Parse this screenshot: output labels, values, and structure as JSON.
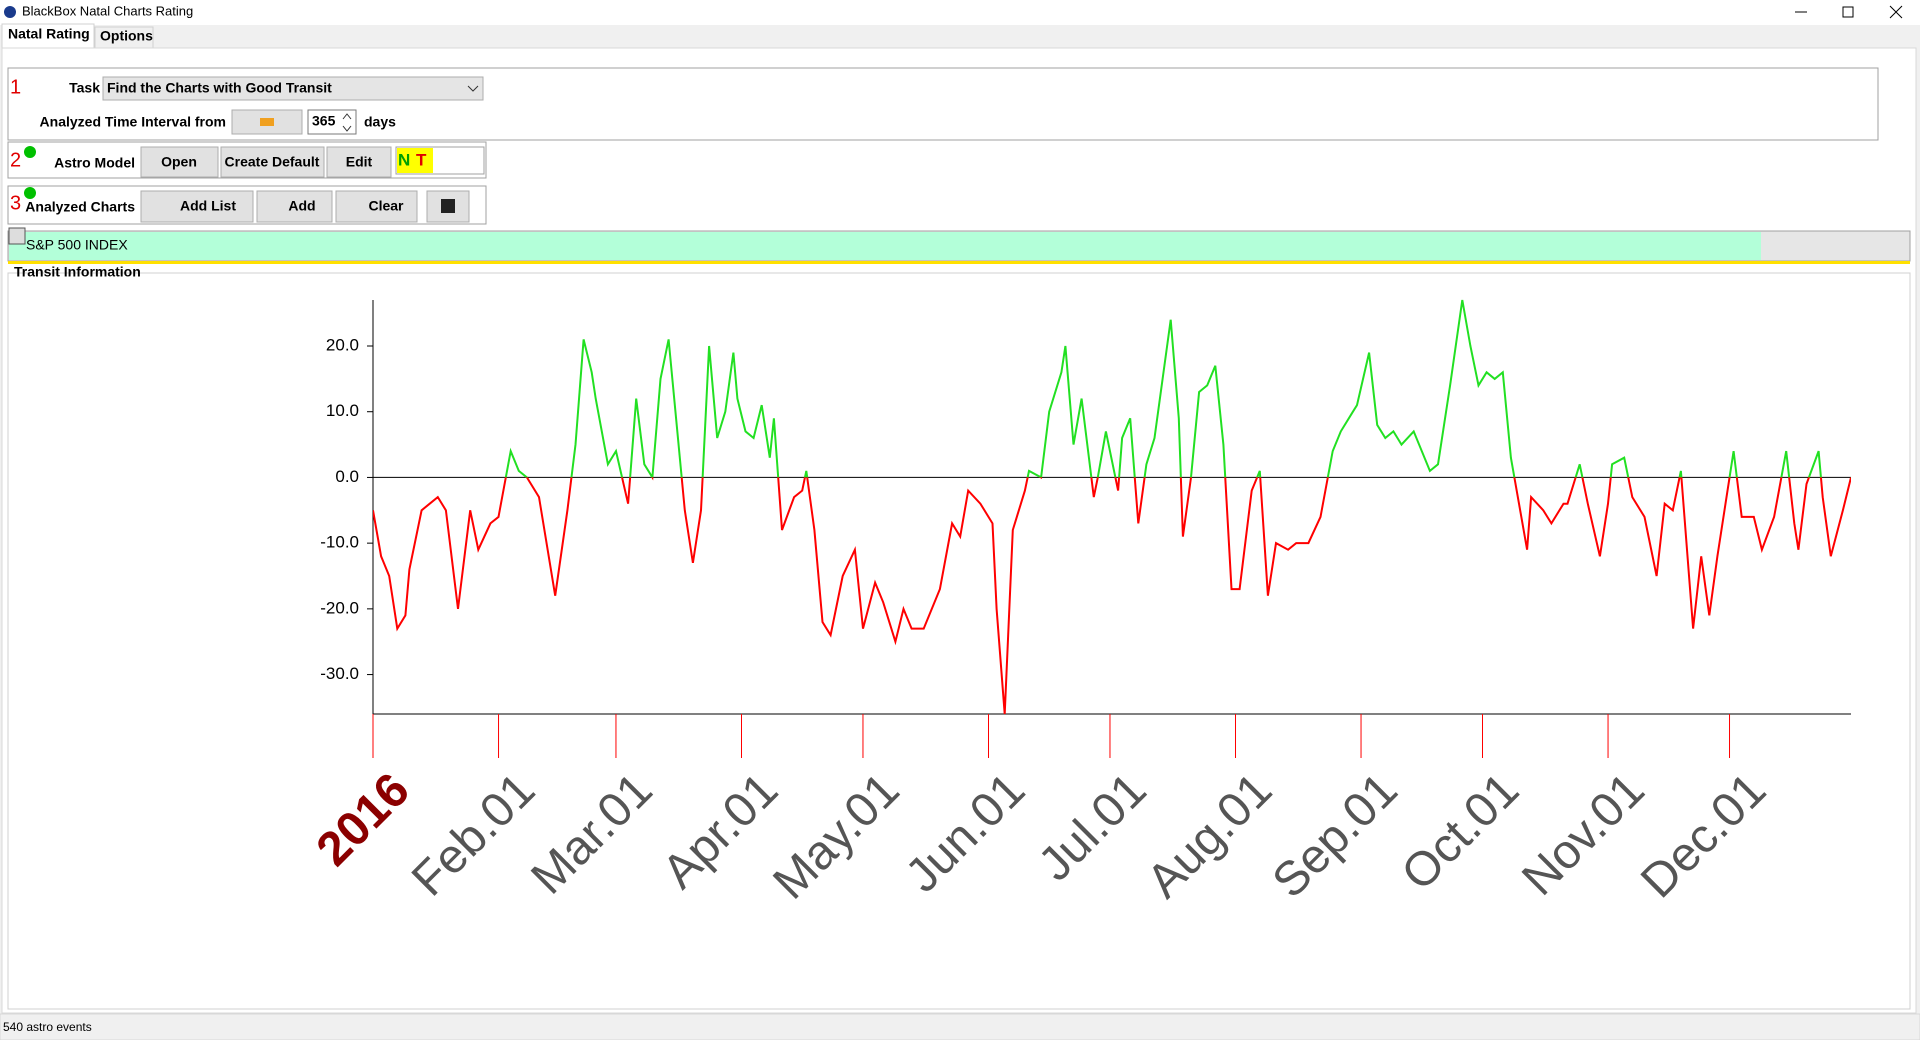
{
  "window": {
    "title": "BlackBox Natal Charts Rating"
  },
  "tabs": [
    "Natal Rating",
    "Options"
  ],
  "step1": {
    "number": "1",
    "task_label": "Task",
    "task_value": "Find the Charts with Good Transit",
    "interval_label": "Analyzed Time Interval from",
    "days_value": "365",
    "days_label": "days"
  },
  "step2": {
    "number": "2",
    "label": "Astro Model",
    "buttons": [
      "Open",
      "Create Default",
      "Edit"
    ],
    "model_n": "N",
    "model_t": "T"
  },
  "step3": {
    "number": "3",
    "label": "Analyzed Charts",
    "buttons": [
      "Add List",
      "Add",
      "Clear"
    ]
  },
  "chart_list": {
    "item": "S&P 500 INDEX"
  },
  "panel_title": "Transit Information",
  "status": "540 astro events",
  "chart_data": {
    "type": "line",
    "x": [
      0,
      2,
      4,
      6,
      8,
      9,
      12,
      14,
      16,
      18,
      21,
      24,
      26,
      29,
      31,
      34,
      36,
      38,
      41,
      45,
      48,
      50,
      52,
      54,
      55,
      58,
      60,
      63,
      65,
      67,
      69,
      71,
      73,
      75,
      77,
      79,
      81,
      83,
      85,
      87,
      89,
      90,
      92,
      94,
      96,
      98,
      99,
      101,
      104,
      106,
      107,
      109,
      111,
      113,
      116,
      119,
      121,
      124,
      126,
      129,
      131,
      133,
      136,
      140,
      143,
      145,
      147,
      150,
      153,
      154,
      156,
      158,
      161,
      162,
      165,
      167,
      170,
      171,
      173,
      175,
      178,
      179,
      181,
      184,
      185,
      187,
      189,
      191,
      193,
      195,
      197,
      199,
      200,
      202,
      204,
      206,
      208,
      210,
      212,
      214,
      217,
      219,
      221,
      223,
      226,
      228,
      231,
      234,
      237,
      239,
      242,
      243,
      246,
      248,
      250,
      252,
      254,
      257,
      261,
      263,
      266,
      269,
      271,
      273,
      275,
      277,
      279,
      281,
      283,
      285,
      286,
      289,
      291,
      294,
      295,
      298,
      300,
      303,
      305,
      306,
      309,
      311,
      314,
      317,
      319,
      321,
      323,
      326,
      328,
      330,
      332,
      334,
      336,
      338,
      341,
      343,
      346,
      349,
      351,
      352,
      354,
      357,
      358,
      360,
      363,
      365
    ],
    "values": [
      -5,
      -12,
      -15,
      -23,
      -21,
      -14,
      -5,
      -4,
      -3,
      -5,
      -20,
      -5,
      -11,
      -7,
      -6,
      4,
      1,
      0,
      -3,
      -18,
      -5,
      5,
      21,
      16,
      12,
      2,
      4,
      -4,
      12,
      2,
      0,
      15,
      21,
      8,
      -5,
      -13,
      -5,
      20,
      6,
      10,
      19,
      12,
      7,
      6,
      11,
      3,
      9,
      -8,
      -3,
      -2,
      1,
      -8,
      -22,
      -24,
      -15,
      -11,
      -23,
      -16,
      -19,
      -25,
      -20,
      -23,
      -23,
      -17,
      -7,
      -9,
      -2,
      -4,
      -7,
      -20,
      -36,
      -8,
      -2,
      1,
      0,
      10,
      16,
      20,
      5,
      12,
      -3,
      0,
      7,
      -2,
      6,
      9,
      -7,
      2,
      6,
      15,
      24,
      9,
      -9,
      0,
      13,
      14,
      17,
      5,
      -17,
      -17,
      -2,
      1,
      -18,
      -10,
      -11,
      -10,
      -10,
      -6,
      4,
      7,
      10,
      11,
      19,
      8,
      6,
      7,
      5,
      7,
      1,
      2,
      14,
      27,
      20,
      14,
      16,
      15,
      16,
      3,
      -4,
      -11,
      -3,
      -5,
      -7,
      -4,
      -4,
      2,
      -4,
      -12,
      -4,
      2,
      3,
      -3,
      -6,
      -15,
      -4,
      -5,
      1,
      -23,
      -12,
      -21,
      -12,
      -4,
      4,
      -6,
      -6,
      -11,
      -6,
      4,
      -7,
      -11,
      -1,
      4,
      -3,
      -12,
      -5,
      0
    ],
    "color_above": "#22e022",
    "color_below": "#ff0000",
    "xlim": [
      0,
      365
    ],
    "ylim": [
      -36,
      27
    ],
    "yticks": [
      {
        "value": 20,
        "label": "20.0"
      },
      {
        "value": 10,
        "label": "10.0"
      },
      {
        "value": 0,
        "label": "0.0"
      },
      {
        "value": -10,
        "label": "-10.0"
      },
      {
        "value": -20,
        "label": "-20.0"
      },
      {
        "value": -30,
        "label": "-30.0"
      }
    ],
    "xticks": [
      {
        "value": 0,
        "label": "2016"
      },
      {
        "value": 31,
        "label": "Feb.01"
      },
      {
        "value": 60,
        "label": "Mar.01"
      },
      {
        "value": 91,
        "label": "Apr.01"
      },
      {
        "value": 121,
        "label": "May.01"
      },
      {
        "value": 152,
        "label": "Jun.01"
      },
      {
        "value": 182,
        "label": "Jul.01"
      },
      {
        "value": 213,
        "label": "Aug.01"
      },
      {
        "value": 244,
        "label": "Sep.01"
      },
      {
        "value": 274,
        "label": "Oct.01"
      },
      {
        "value": 305,
        "label": "Nov.01"
      },
      {
        "value": 335,
        "label": "Dec.01"
      }
    ],
    "year_tick_color": "#8b0000",
    "month_tick_color": "#ff0000"
  }
}
